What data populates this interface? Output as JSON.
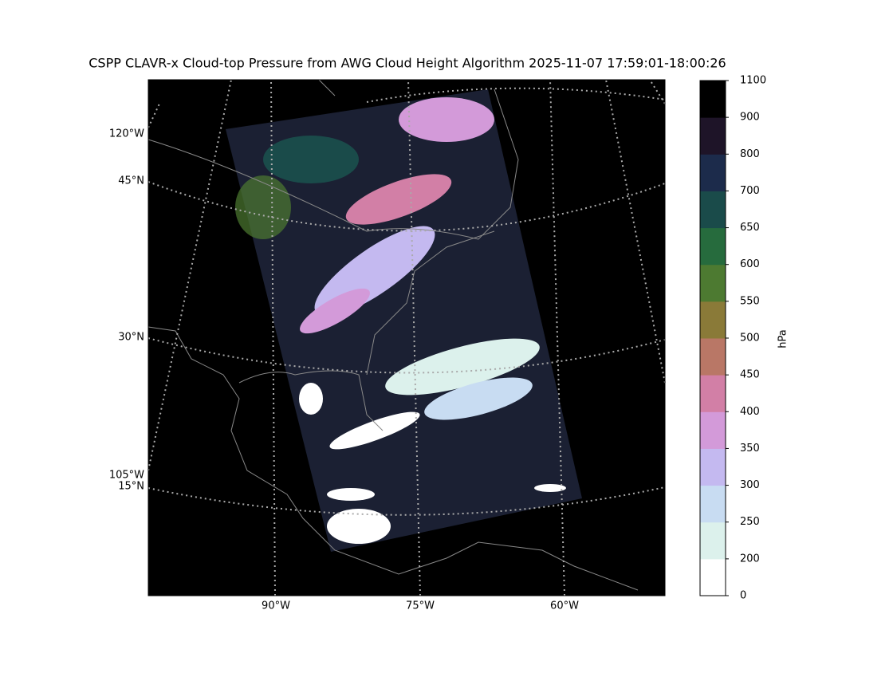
{
  "map": {
    "title": "CSPP CLAVR-x Cloud-top Pressure from AWG Cloud Height Algorithm 2025-11-07 17:59:01-18:00:26",
    "lat_labels": [
      "45°N",
      "30°N",
      "15°N"
    ],
    "lon_left_labels": [
      "120°W",
      "105°W"
    ],
    "lon_bottom_labels": [
      "90°W",
      "75°W",
      "60°W"
    ]
  },
  "colorbar": {
    "label": "hPa",
    "ticks": [
      0,
      200,
      250,
      300,
      350,
      400,
      450,
      500,
      550,
      600,
      650,
      700,
      800,
      900,
      1100
    ],
    "colors": [
      "#ffffff",
      "#dcf1ec",
      "#c8dcf2",
      "#c4b9f0",
      "#d39ad9",
      "#d27fa6",
      "#b97766",
      "#8a7a38",
      "#4d7a31",
      "#266b3d",
      "#1a4b4a",
      "#1c2b4b",
      "#1e1428",
      "#000000"
    ]
  }
}
